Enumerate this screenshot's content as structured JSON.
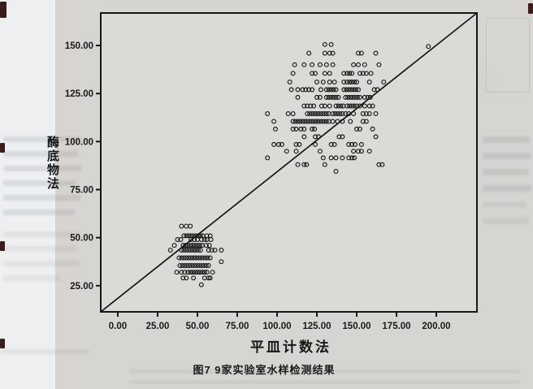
{
  "page": {
    "caption": "图7 9家实验室水样检测结果",
    "ink_color": "#161616",
    "paper_color": "#d7d5d1"
  },
  "chart_data": {
    "type": "scatter",
    "title": "",
    "xlabel": "平皿计数法",
    "ylabel": "酶底物法",
    "xlim": [
      -10.7,
      225.5
    ],
    "ylim": [
      11.4,
      166.9
    ],
    "grid": false,
    "legend": "none",
    "x_ticks": [
      0,
      25,
      50,
      75,
      100,
      125,
      150,
      175,
      200
    ],
    "x_tick_labels": [
      "0.00",
      "25.00",
      "50.00",
      "75.00",
      "100.00",
      "125.00",
      "150.00",
      "175.00",
      "200.00"
    ],
    "y_ticks": [
      25,
      50,
      75,
      100,
      125,
      150
    ],
    "y_tick_labels": [
      "25.00",
      "50.00",
      "75.00",
      "100.00",
      "125.00",
      "150.00"
    ],
    "marker": {
      "shape": "open-circle",
      "color": "#161616",
      "radius_px": 2.4
    },
    "reference_line": {
      "x1": -10.7,
      "y1": 11.4,
      "x2": 225.5,
      "y2": 166.9,
      "style": "solid",
      "color": "#161616"
    },
    "series": [
      {
        "name": "upper-cluster",
        "points": [
          [
            130,
            150.5
          ],
          [
            134,
            150.5
          ],
          [
            120,
            146
          ],
          [
            130,
            146
          ],
          [
            133,
            146
          ],
          [
            135,
            146
          ],
          [
            151,
            146
          ],
          [
            153,
            146
          ],
          [
            162,
            146
          ],
          [
            111,
            140
          ],
          [
            117,
            140
          ],
          [
            122,
            140
          ],
          [
            127,
            140
          ],
          [
            131,
            140
          ],
          [
            135,
            140
          ],
          [
            148,
            140
          ],
          [
            151,
            140
          ],
          [
            155,
            140
          ],
          [
            164,
            140
          ],
          [
            110,
            135.5
          ],
          [
            122,
            135.5
          ],
          [
            124,
            135.5
          ],
          [
            130,
            135.5
          ],
          [
            133,
            135.5
          ],
          [
            142,
            135.5
          ],
          [
            144,
            135.5
          ],
          [
            145.5,
            135.5
          ],
          [
            147,
            135.5
          ],
          [
            152,
            135.5
          ],
          [
            154,
            135.5
          ],
          [
            156,
            135.5
          ],
          [
            159,
            135.5
          ],
          [
            108,
            131
          ],
          [
            125,
            131
          ],
          [
            129,
            131
          ],
          [
            133,
            131
          ],
          [
            136,
            131
          ],
          [
            142,
            131
          ],
          [
            144,
            131
          ],
          [
            145.5,
            131
          ],
          [
            147,
            131
          ],
          [
            148.5,
            131
          ],
          [
            150,
            131
          ],
          [
            158,
            131
          ],
          [
            167,
            131
          ],
          [
            109,
            127
          ],
          [
            113,
            127
          ],
          [
            116,
            127
          ],
          [
            118,
            127
          ],
          [
            120,
            127
          ],
          [
            122,
            127
          ],
          [
            127.5,
            127
          ],
          [
            131,
            127
          ],
          [
            132.5,
            127
          ],
          [
            134,
            127
          ],
          [
            135.5,
            127
          ],
          [
            137,
            127
          ],
          [
            142,
            127
          ],
          [
            143.5,
            127
          ],
          [
            145,
            127
          ],
          [
            146.5,
            127
          ],
          [
            148,
            127
          ],
          [
            149.5,
            127
          ],
          [
            151,
            127
          ],
          [
            161,
            127
          ],
          [
            163,
            127
          ],
          [
            113,
            123
          ],
          [
            125,
            123
          ],
          [
            127,
            123
          ],
          [
            131,
            123
          ],
          [
            132.5,
            123
          ],
          [
            134,
            123
          ],
          [
            135.5,
            123
          ],
          [
            137,
            123
          ],
          [
            138.5,
            123
          ],
          [
            143,
            123
          ],
          [
            144.5,
            123
          ],
          [
            146,
            123
          ],
          [
            147.5,
            123
          ],
          [
            149,
            123
          ],
          [
            150.5,
            123
          ],
          [
            152,
            123
          ],
          [
            155,
            123
          ],
          [
            157,
            123
          ],
          [
            158.5,
            123
          ],
          [
            117,
            118.5
          ],
          [
            119,
            118.5
          ],
          [
            121,
            118.5
          ],
          [
            123,
            118.5
          ],
          [
            128,
            118.5
          ],
          [
            130,
            118.5
          ],
          [
            133,
            118.5
          ],
          [
            137,
            118.5
          ],
          [
            138.5,
            118.5
          ],
          [
            140,
            118.5
          ],
          [
            141.5,
            118.5
          ],
          [
            144,
            118.5
          ],
          [
            145.5,
            118.5
          ],
          [
            147,
            118.5
          ],
          [
            148.5,
            118.5
          ],
          [
            150,
            118.5
          ],
          [
            152,
            118.5
          ],
          [
            155,
            118.5
          ],
          [
            158,
            118.5
          ],
          [
            160,
            118.5
          ],
          [
            94,
            114.5
          ],
          [
            107,
            114.5
          ],
          [
            110,
            114.5
          ],
          [
            119,
            114.5
          ],
          [
            120.5,
            114.5
          ],
          [
            122,
            114.5
          ],
          [
            123.5,
            114.5
          ],
          [
            125,
            114.5
          ],
          [
            126.5,
            114.5
          ],
          [
            128,
            114.5
          ],
          [
            129.5,
            114.5
          ],
          [
            131,
            114.5
          ],
          [
            132.5,
            114.5
          ],
          [
            135,
            114.5
          ],
          [
            136.5,
            114.5
          ],
          [
            138,
            114.5
          ],
          [
            139.5,
            114.5
          ],
          [
            141,
            114.5
          ],
          [
            143,
            114.5
          ],
          [
            145,
            114.5
          ],
          [
            148,
            114.5
          ],
          [
            154,
            114.5
          ],
          [
            156,
            114.5
          ],
          [
            158,
            114.5
          ],
          [
            162,
            114.5
          ],
          [
            98,
            110.5
          ],
          [
            110,
            110.5
          ],
          [
            111.5,
            110.5
          ],
          [
            113,
            110.5
          ],
          [
            114.5,
            110.5
          ],
          [
            116,
            110.5
          ],
          [
            117.5,
            110.5
          ],
          [
            119,
            110.5
          ],
          [
            120.5,
            110.5
          ],
          [
            122,
            110.5
          ],
          [
            123.5,
            110.5
          ],
          [
            125,
            110.5
          ],
          [
            126.5,
            110.5
          ],
          [
            128,
            110.5
          ],
          [
            129.5,
            110.5
          ],
          [
            131,
            110.5
          ],
          [
            132.5,
            110.5
          ],
          [
            135,
            110.5
          ],
          [
            138,
            110.5
          ],
          [
            141,
            110.5
          ],
          [
            146,
            110.5
          ],
          [
            154,
            110.5
          ],
          [
            156,
            110.5
          ],
          [
            99,
            106.5
          ],
          [
            110,
            106.5
          ],
          [
            112,
            106.5
          ],
          [
            115,
            106.5
          ],
          [
            117,
            106.5
          ],
          [
            122,
            106.5
          ],
          [
            123.5,
            106.5
          ],
          [
            150,
            106.5
          ],
          [
            152,
            106.5
          ],
          [
            160,
            106.5
          ],
          [
            117,
            102.5
          ],
          [
            124,
            102.5
          ],
          [
            126,
            102.5
          ],
          [
            139,
            102.5
          ],
          [
            141,
            102.5
          ],
          [
            162,
            102.5
          ],
          [
            98,
            98.5
          ],
          [
            101,
            98.5
          ],
          [
            103,
            98.5
          ],
          [
            112,
            98.5
          ],
          [
            114,
            98.5
          ],
          [
            124,
            98.5
          ],
          [
            134,
            98.5
          ],
          [
            136,
            98.5
          ],
          [
            145,
            98.5
          ],
          [
            147,
            98.5
          ],
          [
            149,
            98.5
          ],
          [
            153,
            98.5
          ],
          [
            106,
            95
          ],
          [
            112,
            95
          ],
          [
            127,
            95
          ],
          [
            148,
            95
          ],
          [
            151,
            95
          ],
          [
            153,
            95
          ],
          [
            158,
            95
          ],
          [
            94,
            91.5
          ],
          [
            129,
            91.5
          ],
          [
            134,
            91.5
          ],
          [
            137,
            91.5
          ],
          [
            141,
            91.5
          ],
          [
            145,
            91.5
          ],
          [
            147,
            91.5
          ],
          [
            148.5,
            91.5
          ],
          [
            113,
            88
          ],
          [
            117,
            88
          ],
          [
            118.5,
            88
          ],
          [
            130,
            88
          ],
          [
            164,
            88
          ],
          [
            166,
            88
          ],
          [
            137,
            84.5
          ]
        ]
      },
      {
        "name": "lower-cluster",
        "points": [
          [
            40,
            56
          ],
          [
            43,
            56
          ],
          [
            45.5,
            56
          ],
          [
            41.5,
            51
          ],
          [
            43,
            51
          ],
          [
            44.5,
            51
          ],
          [
            46,
            51
          ],
          [
            47.5,
            51
          ],
          [
            49,
            51
          ],
          [
            50.5,
            51
          ],
          [
            52,
            51
          ],
          [
            53.5,
            51
          ],
          [
            56,
            51
          ],
          [
            58,
            51
          ],
          [
            37.5,
            49
          ],
          [
            39.5,
            49
          ],
          [
            46,
            49
          ],
          [
            48,
            49
          ],
          [
            50,
            49
          ],
          [
            52.5,
            49
          ],
          [
            54.5,
            49
          ],
          [
            56,
            49
          ],
          [
            58.5,
            49
          ],
          [
            35.5,
            46
          ],
          [
            41,
            46
          ],
          [
            42.5,
            46
          ],
          [
            44,
            46
          ],
          [
            45.5,
            46
          ],
          [
            47,
            46
          ],
          [
            48.5,
            46
          ],
          [
            50,
            46
          ],
          [
            51.5,
            46
          ],
          [
            53,
            46
          ],
          [
            55.5,
            46
          ],
          [
            57.5,
            46
          ],
          [
            33,
            43.5
          ],
          [
            40,
            43.5
          ],
          [
            41.5,
            43.5
          ],
          [
            43,
            43.5
          ],
          [
            44.5,
            43.5
          ],
          [
            46,
            43.5
          ],
          [
            47.5,
            43.5
          ],
          [
            49,
            43.5
          ],
          [
            50.5,
            43.5
          ],
          [
            52,
            43.5
          ],
          [
            57,
            43.5
          ],
          [
            59,
            43.5
          ],
          [
            61,
            43.5
          ],
          [
            65,
            43.5
          ],
          [
            38.5,
            39.5
          ],
          [
            40,
            39.5
          ],
          [
            41.5,
            39.5
          ],
          [
            43,
            39.5
          ],
          [
            44.5,
            39.5
          ],
          [
            46,
            39.5
          ],
          [
            47.5,
            39.5
          ],
          [
            49,
            39.5
          ],
          [
            50.5,
            39.5
          ],
          [
            52,
            39.5
          ],
          [
            53.5,
            39.5
          ],
          [
            55,
            39.5
          ],
          [
            56.5,
            39.5
          ],
          [
            58,
            39.5
          ],
          [
            65,
            37.5
          ],
          [
            39,
            35.5
          ],
          [
            40.5,
            35.5
          ],
          [
            42,
            35.5
          ],
          [
            43.5,
            35.5
          ],
          [
            45,
            35.5
          ],
          [
            46.5,
            35.5
          ],
          [
            48,
            35.5
          ],
          [
            49.5,
            35.5
          ],
          [
            51,
            35.5
          ],
          [
            52.5,
            35.5
          ],
          [
            54,
            35.5
          ],
          [
            55.5,
            35.5
          ],
          [
            57,
            35.5
          ],
          [
            37,
            32
          ],
          [
            40,
            32
          ],
          [
            42,
            32
          ],
          [
            44,
            32
          ],
          [
            45.5,
            32
          ],
          [
            47,
            32
          ],
          [
            48.5,
            32
          ],
          [
            50,
            32
          ],
          [
            51.5,
            32
          ],
          [
            53,
            32
          ],
          [
            54.5,
            32
          ],
          [
            56,
            32
          ],
          [
            59.5,
            32
          ],
          [
            41,
            29
          ],
          [
            43,
            29
          ],
          [
            47.5,
            29
          ],
          [
            54.5,
            29
          ],
          [
            57,
            29
          ],
          [
            58,
            29
          ],
          [
            52.5,
            25.5
          ]
        ]
      },
      {
        "name": "outlier",
        "points": [
          [
            195,
            149.5
          ]
        ]
      }
    ]
  }
}
